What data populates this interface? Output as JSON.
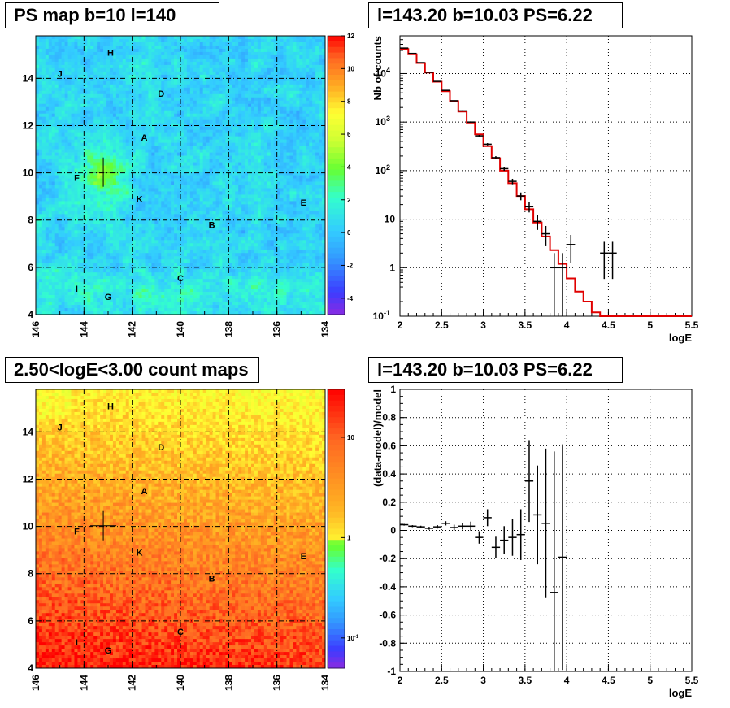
{
  "titles": {
    "ps_map": "PS map b=10 l=140",
    "spectrum": "l=143.20 b=10.03 PS=6.22",
    "count_map": "2.50<logE<3.00 count maps",
    "residual": "l=143.20 b=10.03 PS=6.22"
  },
  "chart_data": [
    {
      "type": "heatmap",
      "title": "PS map b=10 l=140",
      "xlim": [
        146,
        134
      ],
      "ylim": [
        4,
        15.8
      ],
      "x_ticks": [
        "146",
        "144",
        "142",
        "140",
        "138",
        "136",
        "134"
      ],
      "y_ticks": [
        "4",
        "6",
        "8",
        "10",
        "12",
        "14"
      ],
      "colorbar": {
        "range": [
          -5,
          12
        ],
        "ticks": [
          "12",
          "10",
          "8",
          "6",
          "4",
          "2",
          "0",
          "-2",
          "-4"
        ]
      },
      "cross": {
        "l": 143.2,
        "b": 10.03
      },
      "source_labels": [
        {
          "name": "H",
          "l": 142.9,
          "b": 15.1
        },
        {
          "name": "J",
          "l": 145.0,
          "b": 14.2
        },
        {
          "name": "D",
          "l": 140.8,
          "b": 13.35
        },
        {
          "name": "A",
          "l": 141.5,
          "b": 11.5
        },
        {
          "name": "F",
          "l": 144.3,
          "b": 9.8
        },
        {
          "name": "K",
          "l": 141.7,
          "b": 8.9
        },
        {
          "name": "E",
          "l": 134.9,
          "b": 8.75
        },
        {
          "name": "B",
          "l": 138.7,
          "b": 7.8
        },
        {
          "name": "C",
          "l": 140.0,
          "b": 5.55
        },
        {
          "name": "I",
          "l": 144.3,
          "b": 5.1
        },
        {
          "name": "G",
          "l": 143.0,
          "b": 4.75
        }
      ]
    },
    {
      "type": "line",
      "title": "l=143.20 b=10.03 PS=6.22",
      "xlabel": "logE",
      "ylabel": "Nb of counts",
      "yscale": "log",
      "xlim": [
        2,
        5.5
      ],
      "ylim": [
        0.1,
        60000
      ],
      "x_ticks": [
        "2",
        "2.5",
        "3",
        "3.5",
        "4",
        "4.5",
        "5",
        "5.5"
      ],
      "y_ticks": [
        "10",
        "1",
        "10",
        "10",
        "10",
        "1",
        "10"
      ],
      "y_tick_exponents": [
        "-1",
        "",
        "",
        "2",
        "3",
        "",
        "4"
      ],
      "series": [
        {
          "x": [
            2.05,
            2.15,
            2.25,
            2.35,
            2.45,
            2.55,
            2.65,
            2.75,
            2.85,
            2.95,
            3.05,
            3.15,
            3.25,
            3.35,
            3.45,
            3.55,
            3.65,
            3.75,
            3.85,
            3.95,
            4.05,
            4.15,
            4.25,
            4.35,
            4.45,
            4.55,
            4.65,
            4.75,
            4.85,
            4.95,
            5.05,
            5.15,
            5.25,
            5.35,
            5.45
          ],
          "values": [
            32000,
            25000,
            16500,
            10500,
            6800,
            4300,
            2700,
            1650,
            980,
            560,
            320,
            180,
            100,
            55,
            30,
            16,
            8.5,
            4.4,
            2.3,
            1.2,
            0.6,
            0.32,
            0.2,
            0.12,
            0.1,
            0.1,
            0.1,
            0.1,
            0.1,
            0.1,
            0.1,
            0.1,
            0.1,
            0.1,
            0.1
          ]
        },
        {
          "x": [
            2.05,
            2.15,
            2.25,
            2.35,
            2.45,
            2.55,
            2.65,
            2.75,
            2.85,
            2.95,
            3.05,
            3.15,
            3.25,
            3.35,
            3.45,
            3.55,
            3.65,
            3.75,
            3.85,
            3.95,
            4.05,
            4.45,
            4.55
          ],
          "values": [
            33500,
            26000,
            16800,
            10600,
            6900,
            4500,
            2750,
            1700,
            1000,
            520,
            350,
            185,
            110,
            60,
            30,
            18,
            9,
            5,
            1,
            1,
            3,
            2,
            2
          ]
        }
      ]
    },
    {
      "type": "heatmap",
      "title": "2.50<logE<3.00 count maps",
      "xlim": [
        146,
        134
      ],
      "ylim": [
        4,
        15.8
      ],
      "x_ticks": [
        "146",
        "144",
        "142",
        "140",
        "138",
        "136",
        "134"
      ],
      "y_ticks": [
        "4",
        "6",
        "8",
        "10",
        "12",
        "14"
      ],
      "colorbar": {
        "scale": "log",
        "range": [
          0.05,
          30
        ],
        "ticks": [
          "10",
          "1",
          "10"
        ],
        "tick_exponents": [
          "",
          "",
          "-1"
        ]
      },
      "cross": {
        "l": 143.2,
        "b": 10.03
      }
    },
    {
      "type": "scatter",
      "title": "l=143.20 b=10.03 PS=6.22",
      "xlabel": "logE",
      "ylabel": "(data-model)/model",
      "xlim": [
        2,
        5.5
      ],
      "ylim": [
        -1,
        1
      ],
      "x_ticks": [
        "2",
        "2.5",
        "3",
        "3.5",
        "4",
        "4.5",
        "5",
        "5.5"
      ],
      "y_ticks": [
        "-1",
        "-0.8",
        "-0.6",
        "-0.4",
        "-0.2",
        "0",
        "0.2",
        "0.4",
        "0.6",
        "0.8",
        "1"
      ],
      "x": [
        2.05,
        2.15,
        2.25,
        2.35,
        2.45,
        2.55,
        2.65,
        2.75,
        2.85,
        2.95,
        3.05,
        3.15,
        3.25,
        3.35,
        3.45,
        3.55,
        3.65,
        3.75,
        3.85,
        3.95
      ],
      "values": [
        0.04,
        0.03,
        0.025,
        0.015,
        0.025,
        0.05,
        0.02,
        0.03,
        0.03,
        -0.05,
        0.09,
        -0.12,
        -0.07,
        -0.05,
        -0.03,
        0.35,
        0.11,
        0.05,
        -0.44,
        -0.19
      ],
      "errors": [
        0.006,
        0.007,
        0.008,
        0.01,
        0.012,
        0.015,
        0.02,
        0.024,
        0.032,
        0.044,
        0.06,
        0.075,
        0.1,
        0.13,
        0.18,
        0.29,
        0.35,
        0.53,
        1.0,
        0.8
      ]
    }
  ]
}
